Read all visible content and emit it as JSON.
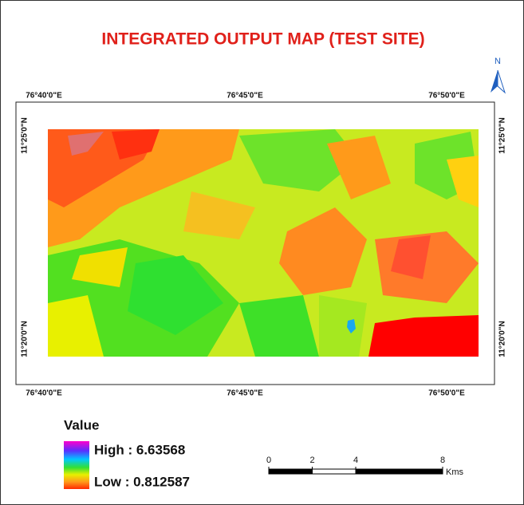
{
  "title": "INTEGRATED OUTPUT MAP (TEST SITE)",
  "north_label": "N",
  "longitude_labels": [
    "76°40'0\"E",
    "76°45'0\"E",
    "76°50'0\"E"
  ],
  "latitude_labels": [
    "11°25'0\"N",
    "11°20'0\"N"
  ],
  "legend": {
    "title": "Value",
    "high": "High : 6.63568",
    "low": "Low : 0.812587"
  },
  "scale_bar": {
    "ticks": [
      0,
      2,
      4,
      8
    ],
    "unit": "Kms"
  }
}
